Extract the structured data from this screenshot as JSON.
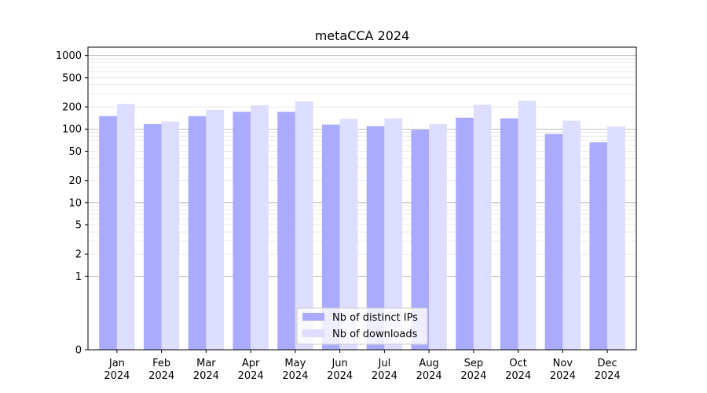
{
  "chart_data": {
    "type": "bar",
    "title": "metaCCA 2024",
    "xlabel": "",
    "ylabel": "",
    "y_scale": "symlog",
    "ylim": [
      0,
      1300
    ],
    "y_ticks": [
      0,
      1,
      2,
      5,
      10,
      20,
      50,
      100,
      200,
      500,
      1000
    ],
    "grid": "horizontal",
    "legend_position": "bottom-center",
    "categories": [
      "Jan\n2024",
      "Feb\n2024",
      "Mar\n2024",
      "Apr\n2024",
      "May\n2024",
      "Jun\n2024",
      "Jul\n2024",
      "Aug\n2024",
      "Sep\n2024",
      "Oct\n2024",
      "Nov\n2024",
      "Dec\n2024"
    ],
    "series": [
      {
        "name": "Nb of distinct IPs",
        "color": "#aaaaff",
        "values": [
          150,
          117,
          150,
          172,
          172,
          115,
          110,
          98,
          143,
          140,
          86,
          66
        ]
      },
      {
        "name": "Nb of downloads",
        "color": "#ddddff",
        "values": [
          220,
          127,
          182,
          211,
          237,
          138,
          140,
          117,
          214,
          243,
          130,
          109
        ]
      }
    ]
  }
}
